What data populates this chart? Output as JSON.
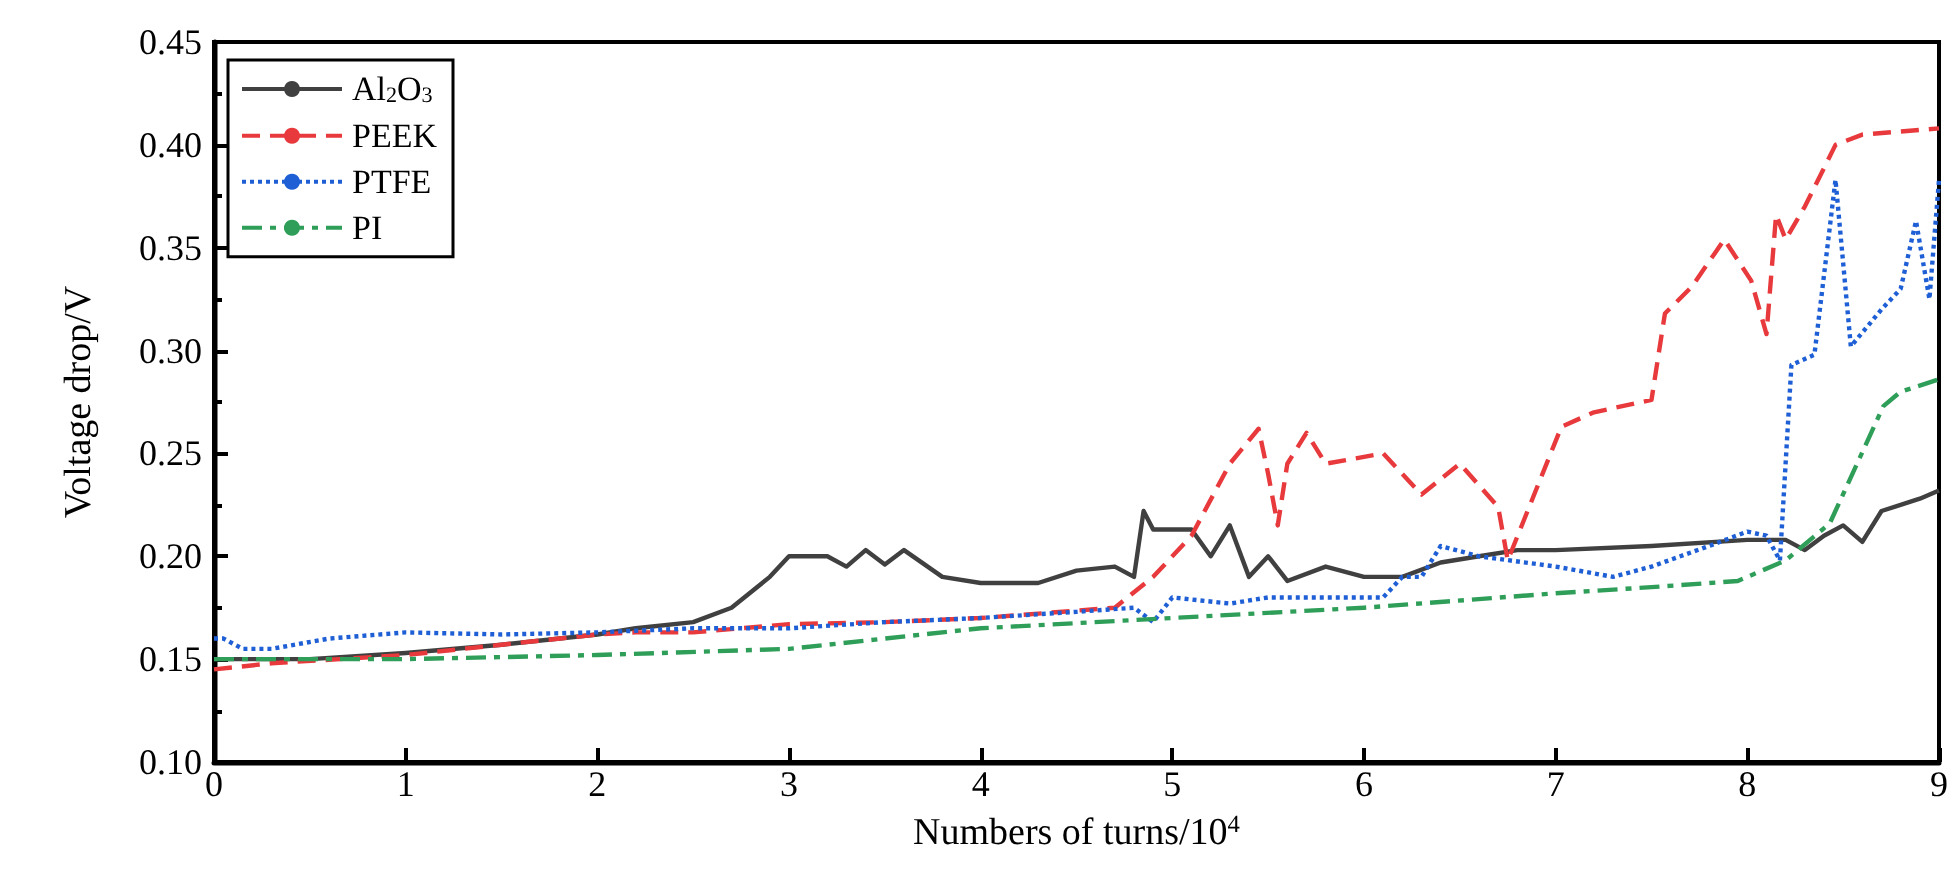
{
  "chart_data": {
    "type": "line",
    "xlabel": "Numbers of turns/10$^{4}$",
    "ylabel": "Voltage drop/V",
    "xlim": [
      0,
      9
    ],
    "xticks": [
      0,
      1,
      2,
      3,
      4,
      5,
      6,
      7,
      8,
      9
    ],
    "ylim": [
      0.1,
      0.45
    ],
    "yticks": [
      {
        "value": 0.1,
        "label": "0.10"
      },
      {
        "value": 0.15,
        "label": "0.15"
      },
      {
        "value": 0.2,
        "label": "0.20"
      },
      {
        "value": 0.25,
        "label": "0.25"
      },
      {
        "value": 0.3,
        "label": "0.30"
      },
      {
        "value": 0.35,
        "label": "0.35"
      },
      {
        "value": 0.4,
        "label": "0.40"
      },
      {
        "value": 0.45,
        "label": "0.45"
      }
    ],
    "grid": false,
    "legend": "top left",
    "marker": "none",
    "series": [
      {
        "name": "Al$_{2}$O$_{3}$",
        "color": "#404040",
        "line_style": "solid",
        "x": [
          0,
          0.5,
          1,
          1.5,
          2,
          2.2,
          2.5,
          2.7,
          2.9,
          3,
          3.2,
          3.3,
          3.4,
          3.5,
          3.6,
          3.8,
          4,
          4.3,
          4.5,
          4.7,
          4.8,
          4.85,
          4.9,
          5.1,
          5.2,
          5.3,
          5.4,
          5.5,
          5.6,
          5.8,
          6,
          6.2,
          6.4,
          6.6,
          6.8,
          7,
          7.5,
          8,
          8.2,
          8.3,
          8.4,
          8.5,
          8.6,
          8.7,
          8.9,
          9
        ],
        "values": [
          0.15,
          0.15,
          0.153,
          0.157,
          0.162,
          0.165,
          0.168,
          0.175,
          0.19,
          0.2,
          0.2,
          0.195,
          0.203,
          0.196,
          0.203,
          0.19,
          0.187,
          0.187,
          0.193,
          0.195,
          0.19,
          0.222,
          0.213,
          0.213,
          0.2,
          0.215,
          0.19,
          0.2,
          0.188,
          0.195,
          0.19,
          0.19,
          0.197,
          0.2,
          0.203,
          0.203,
          0.205,
          0.208,
          0.208,
          0.203,
          0.21,
          0.215,
          0.207,
          0.222,
          0.228,
          0.232
        ]
      },
      {
        "name": "PEEK",
        "color": "#e8393c",
        "line_style": "dashed",
        "x": [
          0,
          0.3,
          1,
          1.5,
          2,
          2.2,
          2.5,
          3,
          3.5,
          4,
          4.7,
          4.9,
          5.1,
          5.3,
          5.45,
          5.5,
          5.55,
          5.6,
          5.7,
          5.8,
          6.1,
          6.3,
          6.5,
          6.7,
          6.75,
          7.03,
          7.2,
          7.5,
          7.57,
          7.71,
          7.88,
          8.02,
          8.1,
          8.15,
          8.2,
          8.3,
          8.46,
          8.6,
          9
        ],
        "values": [
          0.145,
          0.148,
          0.152,
          0.157,
          0.162,
          0.163,
          0.163,
          0.167,
          0.168,
          0.17,
          0.175,
          0.19,
          0.21,
          0.245,
          0.262,
          0.24,
          0.215,
          0.245,
          0.26,
          0.245,
          0.25,
          0.23,
          0.245,
          0.224,
          0.198,
          0.263,
          0.27,
          0.276,
          0.318,
          0.331,
          0.354,
          0.334,
          0.308,
          0.366,
          0.354,
          0.37,
          0.4,
          0.405,
          0.408
        ]
      },
      {
        "name": "PTFE",
        "color": "#1f5fd6",
        "line_style": "dotted",
        "x": [
          0,
          0.05,
          0.15,
          0.3,
          0.6,
          1,
          1.5,
          2,
          2.5,
          3,
          3.5,
          4,
          4.5,
          4.8,
          4.9,
          5,
          5.3,
          5.5,
          6,
          6.1,
          6.2,
          6.3,
          6.4,
          6.6,
          7,
          7.3,
          7.5,
          7.8,
          8,
          8.1,
          8.17,
          8.23,
          8.35,
          8.46,
          8.54,
          8.7,
          8.8,
          8.88,
          8.95,
          9
        ],
        "values": [
          0.16,
          0.16,
          0.155,
          0.155,
          0.16,
          0.163,
          0.162,
          0.163,
          0.165,
          0.165,
          0.168,
          0.17,
          0.173,
          0.175,
          0.168,
          0.18,
          0.177,
          0.18,
          0.18,
          0.18,
          0.19,
          0.19,
          0.205,
          0.2,
          0.195,
          0.19,
          0.195,
          0.205,
          0.212,
          0.21,
          0.198,
          0.293,
          0.298,
          0.383,
          0.302,
          0.32,
          0.33,
          0.363,
          0.325,
          0.383
        ]
      },
      {
        "name": "PI",
        "color": "#2e9e58",
        "line_style": "dashdot",
        "x": [
          0,
          1,
          2,
          3,
          3.5,
          4,
          5,
          6,
          7,
          7.5,
          7.95,
          8.2,
          8.43,
          8.71,
          8.8,
          9
        ],
        "values": [
          0.15,
          0.15,
          0.152,
          0.155,
          0.16,
          0.165,
          0.17,
          0.175,
          0.182,
          0.185,
          0.188,
          0.198,
          0.216,
          0.273,
          0.28,
          0.286
        ]
      }
    ]
  }
}
